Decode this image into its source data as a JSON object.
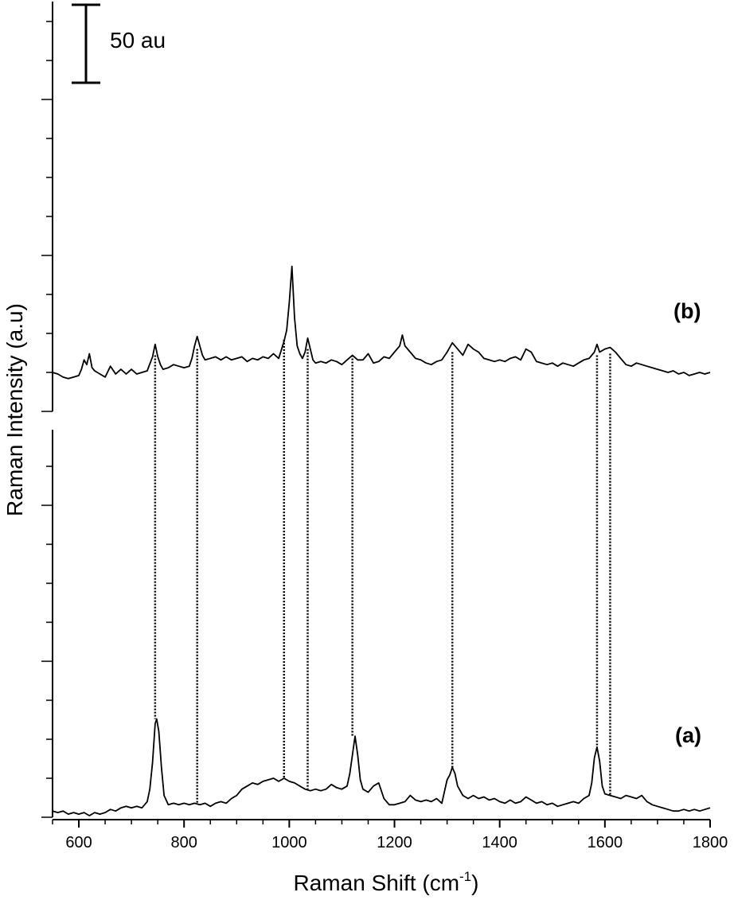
{
  "chart_data": {
    "type": "line",
    "title": "",
    "xlabel": "Raman Shift (cm",
    "xlabel_superscript": "-1",
    "xlabel_suffix": ")",
    "ylabel": "Raman Intensity (a.u)",
    "xlim": [
      550,
      1800
    ],
    "x_ticks": [
      600,
      800,
      1000,
      1200,
      1400,
      1600,
      1800
    ],
    "grid": false,
    "legend": "none",
    "scale_bar": {
      "label": "50 au",
      "value": 50
    },
    "y_tick_spacing_au": 25,
    "series": [
      {
        "name": "(b)",
        "offset": 0,
        "points": [
          [
            550,
            25
          ],
          [
            560,
            24
          ],
          [
            570,
            22
          ],
          [
            580,
            21
          ],
          [
            590,
            22
          ],
          [
            600,
            23
          ],
          [
            605,
            27
          ],
          [
            610,
            33
          ],
          [
            615,
            30
          ],
          [
            620,
            37
          ],
          [
            625,
            28
          ],
          [
            630,
            26
          ],
          [
            640,
            24
          ],
          [
            650,
            22
          ],
          [
            660,
            29
          ],
          [
            670,
            24
          ],
          [
            680,
            27
          ],
          [
            690,
            24
          ],
          [
            700,
            27
          ],
          [
            710,
            24
          ],
          [
            720,
            25
          ],
          [
            730,
            26
          ],
          [
            740,
            35
          ],
          [
            745,
            43
          ],
          [
            750,
            35
          ],
          [
            755,
            30
          ],
          [
            760,
            27
          ],
          [
            770,
            28
          ],
          [
            780,
            30
          ],
          [
            790,
            29
          ],
          [
            800,
            28
          ],
          [
            810,
            29
          ],
          [
            815,
            34
          ],
          [
            820,
            42
          ],
          [
            825,
            48
          ],
          [
            830,
            42
          ],
          [
            835,
            36
          ],
          [
            840,
            33
          ],
          [
            850,
            34
          ],
          [
            860,
            35
          ],
          [
            870,
            33
          ],
          [
            880,
            35
          ],
          [
            890,
            33
          ],
          [
            900,
            34
          ],
          [
            910,
            35
          ],
          [
            920,
            32
          ],
          [
            930,
            34
          ],
          [
            940,
            33
          ],
          [
            950,
            35
          ],
          [
            960,
            34
          ],
          [
            970,
            37
          ],
          [
            980,
            34
          ],
          [
            990,
            45
          ],
          [
            995,
            52
          ],
          [
            1000,
            70
          ],
          [
            1005,
            93
          ],
          [
            1010,
            60
          ],
          [
            1015,
            42
          ],
          [
            1020,
            37
          ],
          [
            1025,
            34
          ],
          [
            1030,
            38
          ],
          [
            1035,
            47
          ],
          [
            1040,
            40
          ],
          [
            1045,
            33
          ],
          [
            1050,
            31
          ],
          [
            1060,
            32
          ],
          [
            1070,
            31
          ],
          [
            1080,
            33
          ],
          [
            1090,
            32
          ],
          [
            1100,
            30
          ],
          [
            1110,
            33
          ],
          [
            1120,
            36
          ],
          [
            1130,
            33
          ],
          [
            1140,
            33
          ],
          [
            1150,
            37
          ],
          [
            1160,
            31
          ],
          [
            1170,
            32
          ],
          [
            1180,
            35
          ],
          [
            1190,
            34
          ],
          [
            1200,
            38
          ],
          [
            1210,
            42
          ],
          [
            1215,
            49
          ],
          [
            1220,
            42
          ],
          [
            1230,
            38
          ],
          [
            1240,
            34
          ],
          [
            1250,
            33
          ],
          [
            1260,
            31
          ],
          [
            1270,
            30
          ],
          [
            1280,
            32
          ],
          [
            1290,
            33
          ],
          [
            1300,
            38
          ],
          [
            1310,
            44
          ],
          [
            1320,
            40
          ],
          [
            1330,
            36
          ],
          [
            1340,
            43
          ],
          [
            1350,
            40
          ],
          [
            1360,
            38
          ],
          [
            1370,
            34
          ],
          [
            1380,
            33
          ],
          [
            1390,
            32
          ],
          [
            1400,
            33
          ],
          [
            1410,
            32
          ],
          [
            1420,
            34
          ],
          [
            1430,
            35
          ],
          [
            1440,
            33
          ],
          [
            1450,
            40
          ],
          [
            1460,
            38
          ],
          [
            1470,
            32
          ],
          [
            1480,
            31
          ],
          [
            1490,
            30
          ],
          [
            1500,
            31
          ],
          [
            1510,
            29
          ],
          [
            1520,
            31
          ],
          [
            1530,
            30
          ],
          [
            1540,
            29
          ],
          [
            1550,
            31
          ],
          [
            1560,
            33
          ],
          [
            1570,
            34
          ],
          [
            1580,
            38
          ],
          [
            1585,
            43
          ],
          [
            1590,
            38
          ],
          [
            1600,
            40
          ],
          [
            1610,
            41
          ],
          [
            1620,
            38
          ],
          [
            1630,
            34
          ],
          [
            1640,
            30
          ],
          [
            1650,
            29
          ],
          [
            1660,
            31
          ],
          [
            1670,
            30
          ],
          [
            1680,
            29
          ],
          [
            1690,
            28
          ],
          [
            1700,
            27
          ],
          [
            1710,
            26
          ],
          [
            1720,
            25
          ],
          [
            1730,
            26
          ],
          [
            1740,
            24
          ],
          [
            1750,
            25
          ],
          [
            1760,
            23
          ],
          [
            1770,
            24
          ],
          [
            1780,
            25
          ],
          [
            1790,
            24
          ],
          [
            1800,
            25
          ]
        ]
      },
      {
        "name": "(a)",
        "offset": 0,
        "points": [
          [
            550,
            4
          ],
          [
            560,
            3
          ],
          [
            570,
            4
          ],
          [
            580,
            2
          ],
          [
            590,
            3
          ],
          [
            600,
            2
          ],
          [
            610,
            3
          ],
          [
            620,
            1
          ],
          [
            630,
            3
          ],
          [
            640,
            2
          ],
          [
            650,
            3
          ],
          [
            660,
            5
          ],
          [
            670,
            4
          ],
          [
            680,
            6
          ],
          [
            690,
            7
          ],
          [
            700,
            6
          ],
          [
            710,
            7
          ],
          [
            720,
            6
          ],
          [
            730,
            10
          ],
          [
            735,
            18
          ],
          [
            740,
            35
          ],
          [
            745,
            60
          ],
          [
            748,
            63
          ],
          [
            752,
            55
          ],
          [
            757,
            32
          ],
          [
            762,
            14
          ],
          [
            770,
            8
          ],
          [
            780,
            9
          ],
          [
            790,
            8
          ],
          [
            800,
            9
          ],
          [
            810,
            8
          ],
          [
            820,
            9
          ],
          [
            830,
            8
          ],
          [
            840,
            9
          ],
          [
            850,
            7
          ],
          [
            860,
            9
          ],
          [
            870,
            10
          ],
          [
            880,
            9
          ],
          [
            890,
            12
          ],
          [
            900,
            14
          ],
          [
            910,
            18
          ],
          [
            920,
            20
          ],
          [
            930,
            22
          ],
          [
            940,
            21
          ],
          [
            950,
            23
          ],
          [
            960,
            24
          ],
          [
            970,
            25
          ],
          [
            980,
            23
          ],
          [
            990,
            25
          ],
          [
            1000,
            23
          ],
          [
            1010,
            22
          ],
          [
            1020,
            20
          ],
          [
            1030,
            18
          ],
          [
            1040,
            17
          ],
          [
            1050,
            18
          ],
          [
            1060,
            17
          ],
          [
            1070,
            18
          ],
          [
            1080,
            21
          ],
          [
            1090,
            19
          ],
          [
            1100,
            18
          ],
          [
            1110,
            20
          ],
          [
            1115,
            28
          ],
          [
            1120,
            40
          ],
          [
            1125,
            52
          ],
          [
            1130,
            40
          ],
          [
            1135,
            24
          ],
          [
            1140,
            18
          ],
          [
            1150,
            16
          ],
          [
            1160,
            20
          ],
          [
            1170,
            22
          ],
          [
            1180,
            12
          ],
          [
            1190,
            8
          ],
          [
            1200,
            8
          ],
          [
            1210,
            9
          ],
          [
            1220,
            10
          ],
          [
            1230,
            14
          ],
          [
            1240,
            11
          ],
          [
            1250,
            10
          ],
          [
            1260,
            11
          ],
          [
            1270,
            10
          ],
          [
            1280,
            12
          ],
          [
            1290,
            9
          ],
          [
            1300,
            24
          ],
          [
            1305,
            27
          ],
          [
            1310,
            32
          ],
          [
            1315,
            28
          ],
          [
            1320,
            20
          ],
          [
            1330,
            14
          ],
          [
            1340,
            12
          ],
          [
            1350,
            14
          ],
          [
            1360,
            12
          ],
          [
            1370,
            13
          ],
          [
            1380,
            11
          ],
          [
            1390,
            12
          ],
          [
            1400,
            10
          ],
          [
            1410,
            9
          ],
          [
            1420,
            11
          ],
          [
            1430,
            9
          ],
          [
            1440,
            10
          ],
          [
            1450,
            13
          ],
          [
            1460,
            11
          ],
          [
            1470,
            9
          ],
          [
            1480,
            10
          ],
          [
            1490,
            8
          ],
          [
            1500,
            9
          ],
          [
            1510,
            7
          ],
          [
            1520,
            8
          ],
          [
            1530,
            9
          ],
          [
            1540,
            10
          ],
          [
            1550,
            9
          ],
          [
            1560,
            12
          ],
          [
            1570,
            14
          ],
          [
            1575,
            22
          ],
          [
            1580,
            38
          ],
          [
            1585,
            45
          ],
          [
            1590,
            36
          ],
          [
            1595,
            20
          ],
          [
            1600,
            15
          ],
          [
            1610,
            14
          ],
          [
            1620,
            13
          ],
          [
            1630,
            12
          ],
          [
            1640,
            14
          ],
          [
            1650,
            13
          ],
          [
            1660,
            12
          ],
          [
            1670,
            14
          ],
          [
            1680,
            10
          ],
          [
            1690,
            8
          ],
          [
            1700,
            7
          ],
          [
            1710,
            6
          ],
          [
            1720,
            5
          ],
          [
            1730,
            4
          ],
          [
            1740,
            4
          ],
          [
            1750,
            5
          ],
          [
            1760,
            4
          ],
          [
            1770,
            5
          ],
          [
            1780,
            4
          ],
          [
            1790,
            5
          ],
          [
            1800,
            6
          ]
        ]
      }
    ],
    "peak_markers": [
      {
        "x": 745,
        "y_top": 36,
        "y_bottom": 63
      },
      {
        "x": 825,
        "y_top": 40,
        "y_bottom": 9
      },
      {
        "x": 990,
        "y_top": 46,
        "y_bottom": 25
      },
      {
        "x": 1035,
        "y_top": 40,
        "y_bottom": 18
      },
      {
        "x": 1120,
        "y_top": 36,
        "y_bottom": 52
      },
      {
        "x": 1310,
        "y_top": 38,
        "y_bottom": 32
      },
      {
        "x": 1585,
        "y_top": 36,
        "y_bottom": 45
      },
      {
        "x": 1610,
        "y_top": 37,
        "y_bottom": 14
      }
    ]
  }
}
